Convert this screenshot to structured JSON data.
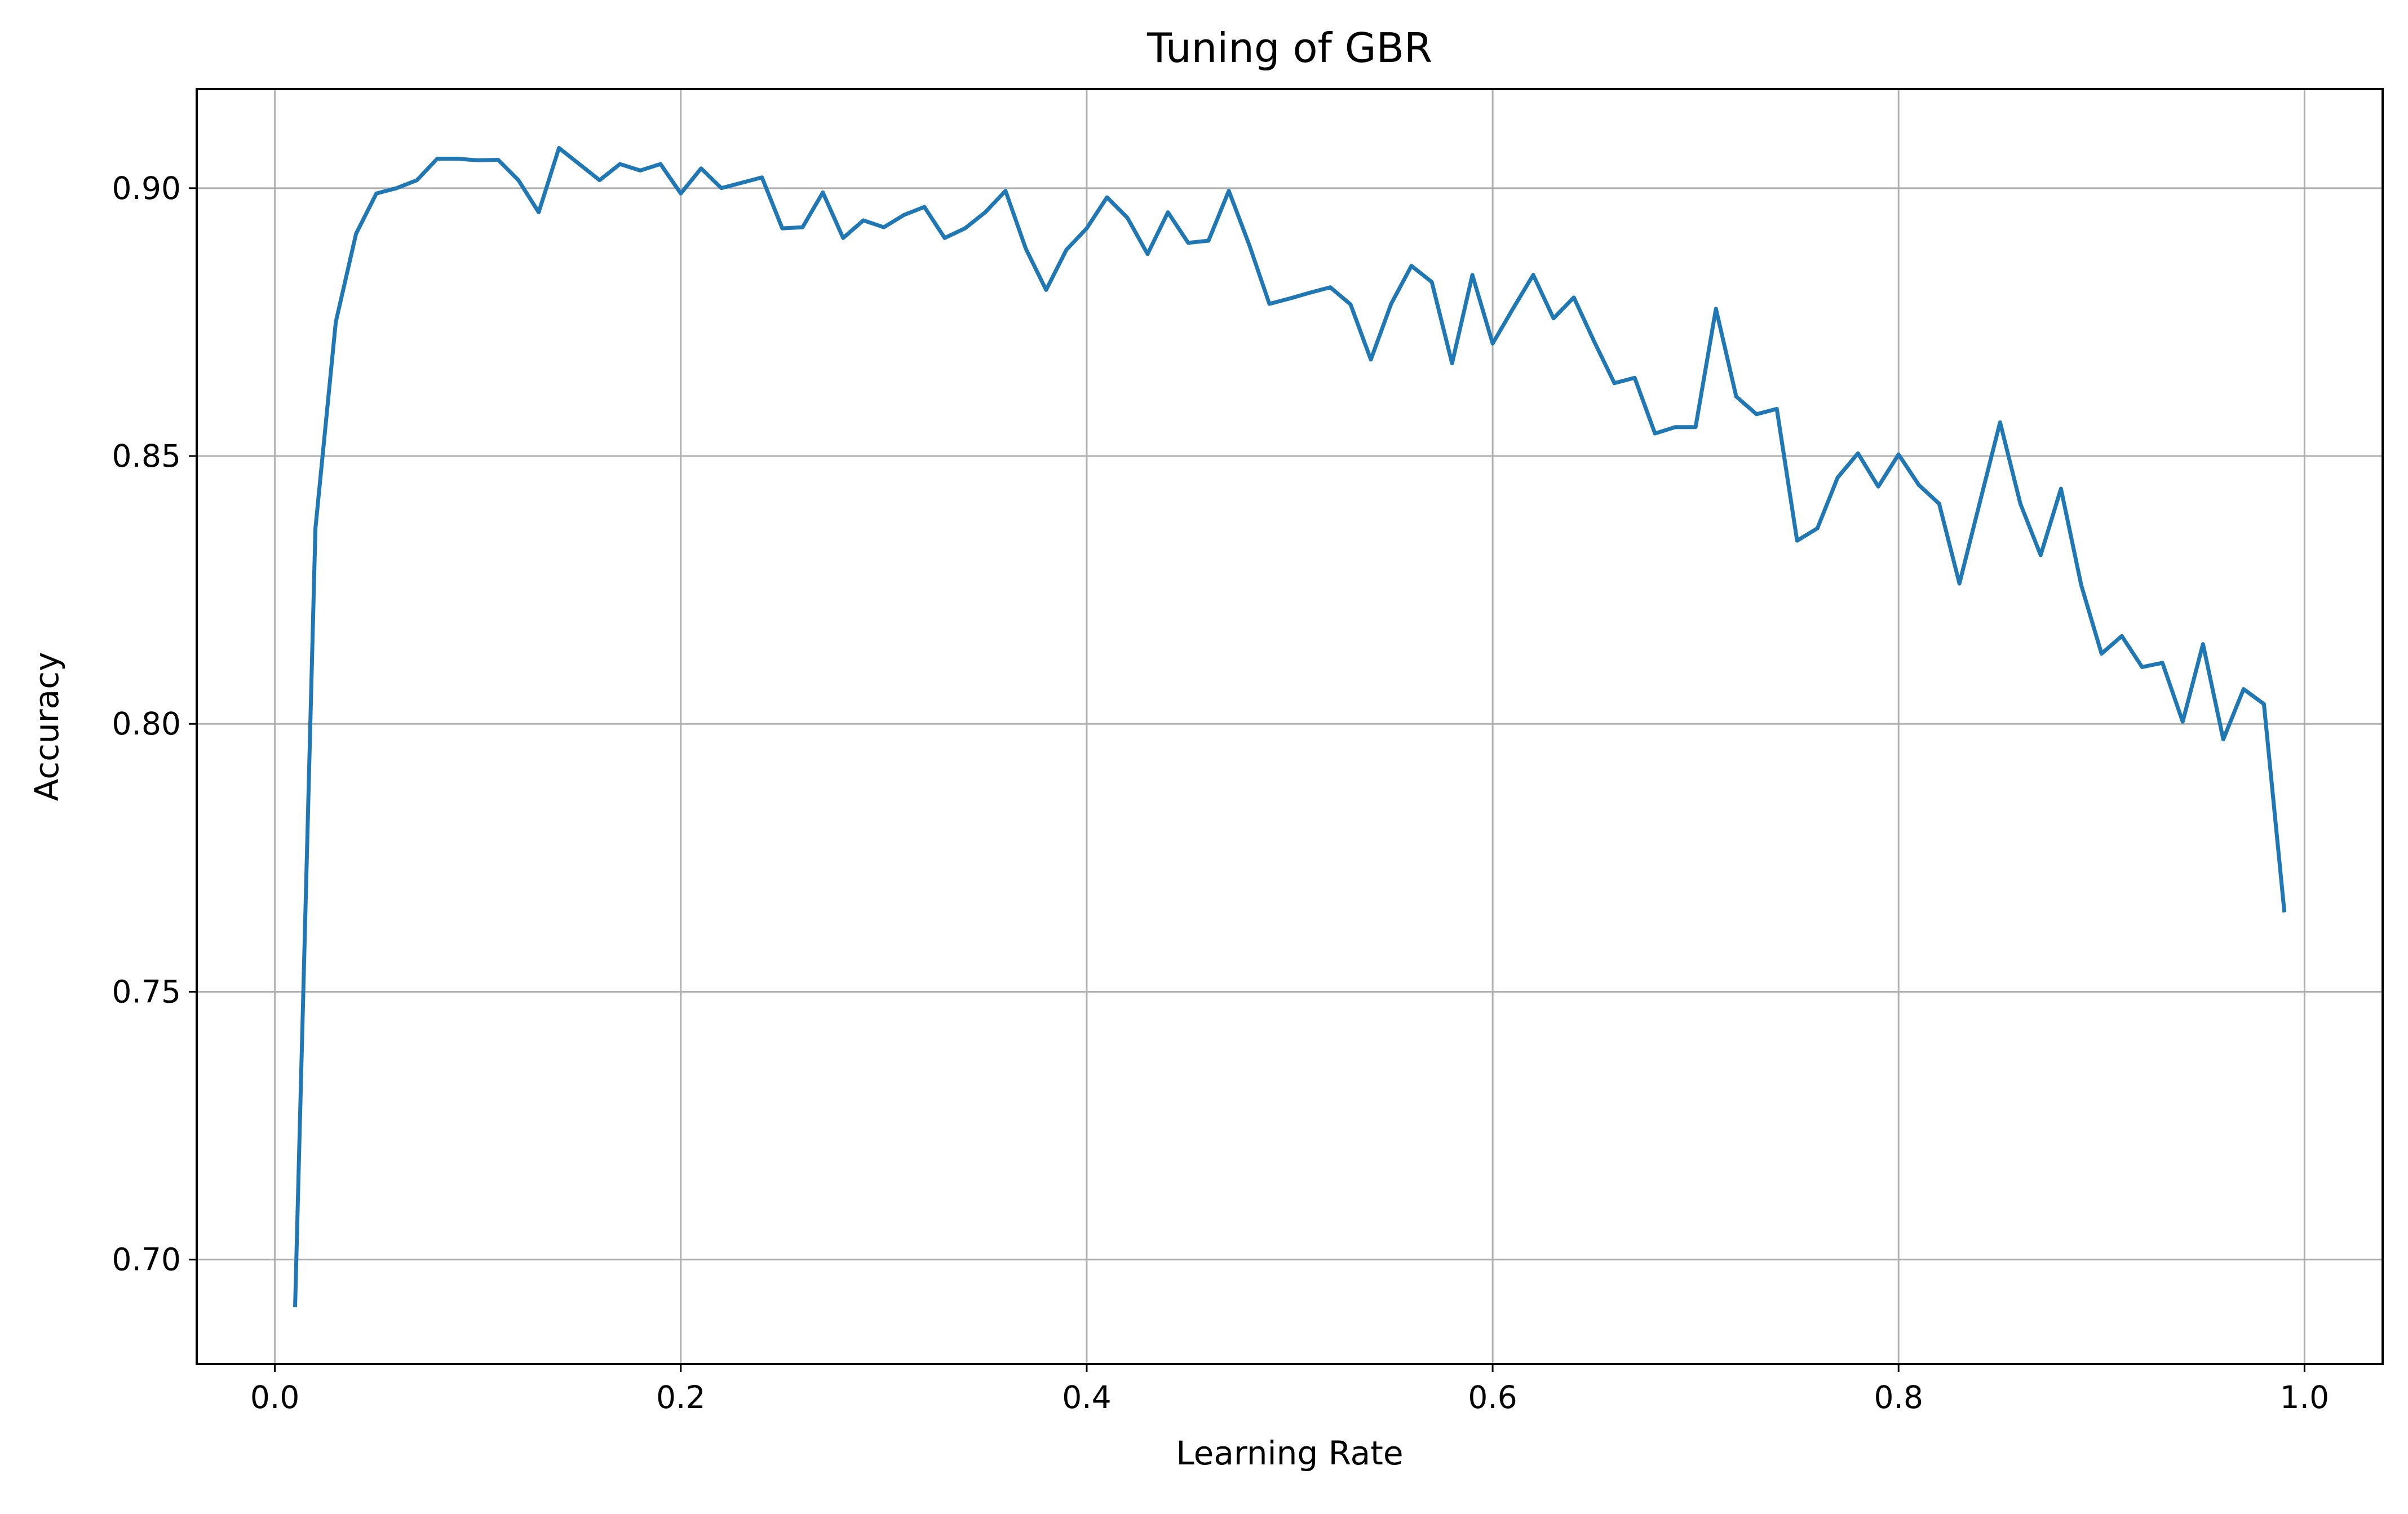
{
  "chart_data": {
    "type": "line",
    "title": "Tuning of GBR",
    "xlabel": "Learning Rate",
    "ylabel": "Accuracy",
    "xlim": [
      -0.0385,
      1.0385
    ],
    "ylim": [
      0.6805,
      0.9185
    ],
    "xticks": [
      0.0,
      0.2,
      0.4,
      0.6,
      0.8,
      1.0
    ],
    "xtick_labels": [
      "0.0",
      "0.2",
      "0.4",
      "0.6",
      "0.8",
      "1.0"
    ],
    "yticks": [
      0.7,
      0.75,
      0.8,
      0.85,
      0.9
    ],
    "ytick_labels": [
      "0.70",
      "0.75",
      "0.80",
      "0.85",
      "0.90"
    ],
    "grid": true,
    "line_color": "#1f77b4",
    "series": [
      {
        "x": [
          0.01,
          0.02,
          0.03,
          0.04,
          0.05,
          0.06,
          0.07,
          0.08,
          0.09,
          0.1,
          0.11,
          0.12,
          0.13,
          0.14,
          0.15,
          0.16,
          0.17,
          0.18,
          0.19,
          0.2,
          0.21,
          0.22,
          0.23,
          0.24,
          0.25,
          0.26,
          0.27,
          0.28,
          0.29,
          0.3,
          0.31,
          0.32,
          0.33,
          0.34,
          0.35,
          0.36,
          0.37,
          0.38,
          0.39,
          0.4,
          0.41,
          0.42,
          0.43,
          0.44,
          0.45,
          0.46,
          0.47,
          0.48,
          0.49,
          0.5,
          0.51,
          0.52,
          0.53,
          0.54,
          0.55,
          0.56,
          0.57,
          0.58,
          0.59,
          0.6,
          0.61,
          0.62,
          0.63,
          0.64,
          0.65,
          0.66,
          0.67,
          0.68,
          0.69,
          0.7,
          0.71,
          0.72,
          0.73,
          0.74,
          0.75,
          0.76,
          0.77,
          0.78,
          0.79,
          0.8,
          0.81,
          0.82,
          0.83,
          0.84,
          0.85,
          0.86,
          0.87,
          0.88,
          0.89,
          0.9,
          0.91,
          0.92,
          0.93,
          0.94,
          0.95,
          0.96,
          0.97,
          0.98,
          0.99
        ],
        "y": [
          0.6915,
          0.8365,
          0.875,
          0.8915,
          0.899,
          0.9,
          0.9015,
          0.9055,
          0.9055,
          0.9052,
          0.9053,
          0.9015,
          0.8955,
          0.9075,
          0.9045,
          0.9015,
          0.9045,
          0.9033,
          0.9045,
          0.899,
          0.9037,
          0.9,
          0.901,
          0.902,
          0.8925,
          0.8927,
          0.8992,
          0.8907,
          0.894,
          0.8927,
          0.895,
          0.8965,
          0.8907,
          0.8925,
          0.8955,
          0.8995,
          0.8887,
          0.881,
          0.8885,
          0.8925,
          0.8983,
          0.8945,
          0.8877,
          0.8955,
          0.8898,
          0.8902,
          0.8995,
          0.8895,
          0.8784,
          0.8794,
          0.8805,
          0.8815,
          0.8783,
          0.868,
          0.8784,
          0.8855,
          0.8825,
          0.8673,
          0.8838,
          0.871,
          0.8775,
          0.8838,
          0.8757,
          0.8796,
          0.8714,
          0.8636,
          0.8646,
          0.8542,
          0.8554,
          0.8554,
          0.8775,
          0.8611,
          0.8578,
          0.8588,
          0.8342,
          0.8365,
          0.846,
          0.8505,
          0.8443,
          0.8503,
          0.8446,
          0.8411,
          0.8262,
          0.8413,
          0.8563,
          0.8411,
          0.8315,
          0.8439,
          0.8259,
          0.8131,
          0.8164,
          0.8106,
          0.8114,
          0.8004,
          0.8149,
          0.7971,
          0.8065,
          0.8037,
          0.7652
        ]
      }
    ]
  }
}
